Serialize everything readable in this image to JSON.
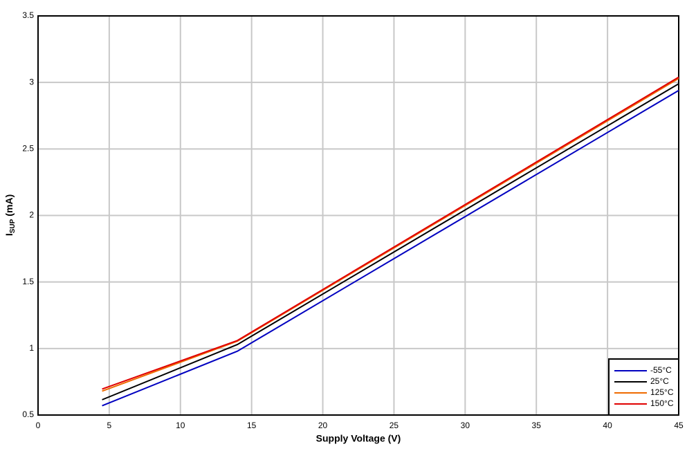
{
  "chart_data": {
    "type": "line",
    "xlabel": "Supply Voltage (V)",
    "ylabel": "I",
    "ylabel_sub": "SUP",
    "ylabel_unit": "(mA)",
    "x": [
      4.5,
      14,
      45
    ],
    "series": [
      {
        "name": "-55°C",
        "color": "#0000c0",
        "values": [
          0.57,
          0.98,
          2.94
        ]
      },
      {
        "name": "25°C",
        "color": "#000000",
        "values": [
          0.615,
          1.03,
          2.99
        ]
      },
      {
        "name": "125°C",
        "color": "#ee6a00",
        "values": [
          0.68,
          1.055,
          3.03
        ]
      },
      {
        "name": "150°C",
        "color": "#e00000",
        "values": [
          0.695,
          1.06,
          3.04
        ]
      }
    ],
    "xlim": [
      0,
      45
    ],
    "xticks": [
      0,
      5,
      10,
      15,
      20,
      25,
      30,
      35,
      40,
      45
    ],
    "ylim": [
      0.5,
      3.5
    ],
    "yticks": [
      0.5,
      1,
      1.5,
      2,
      2.5,
      3,
      3.5
    ],
    "grid": true,
    "legend": "lower right"
  }
}
